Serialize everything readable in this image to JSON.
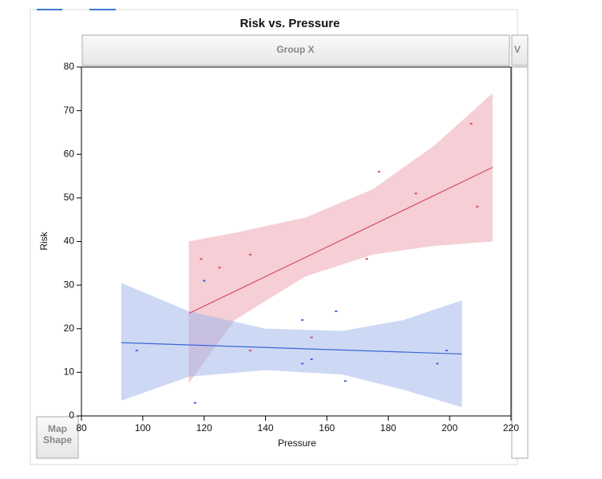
{
  "chart_data": {
    "type": "scatter",
    "title": "Risk vs. Pressure",
    "group_header": "Group X",
    "next_group_header": "V",
    "xlabel": "Pressure",
    "ylabel": "Risk",
    "button": "Map Shape",
    "xlim": [
      80,
      220
    ],
    "xticks": [
      80,
      100,
      120,
      140,
      160,
      180,
      200,
      220
    ],
    "ylim": [
      0,
      80
    ],
    "yticks": [
      0,
      10,
      20,
      30,
      40,
      50,
      60,
      70,
      80
    ],
    "series": [
      {
        "color": "#d84860",
        "band_color": "#eba0ac",
        "x": [
          119,
          125,
          135,
          173,
          177,
          189,
          207,
          209,
          155,
          135
        ],
        "values": [
          36,
          34,
          37,
          36,
          56,
          51,
          67,
          48,
          18,
          15
        ],
        "fit": {
          "x": [
            115,
            214
          ],
          "values": [
            23.5,
            57
          ]
        },
        "band": {
          "x": [
            115,
            130,
            153,
            175,
            195,
            214
          ],
          "upper": [
            40,
            42,
            45.5,
            52,
            62,
            74
          ],
          "lower": [
            7.5,
            22,
            32,
            37,
            39,
            40
          ]
        }
      },
      {
        "color": "#3a66d8",
        "band_color": "#9cb2ea",
        "x": [
          98,
          117,
          120,
          152,
          152,
          155,
          163,
          166,
          196,
          199
        ],
        "values": [
          15,
          3,
          31,
          22,
          12,
          13,
          24,
          8,
          12,
          15
        ],
        "fit": {
          "x": [
            93,
            204
          ],
          "values": [
            16.8,
            14.2
          ]
        },
        "band": {
          "x": [
            93,
            115,
            140,
            165,
            185,
            204
          ],
          "upper": [
            30.5,
            24,
            20,
            19.5,
            22,
            26.5
          ],
          "lower": [
            3.5,
            9,
            10.5,
            9.5,
            6,
            2
          ]
        }
      }
    ]
  }
}
